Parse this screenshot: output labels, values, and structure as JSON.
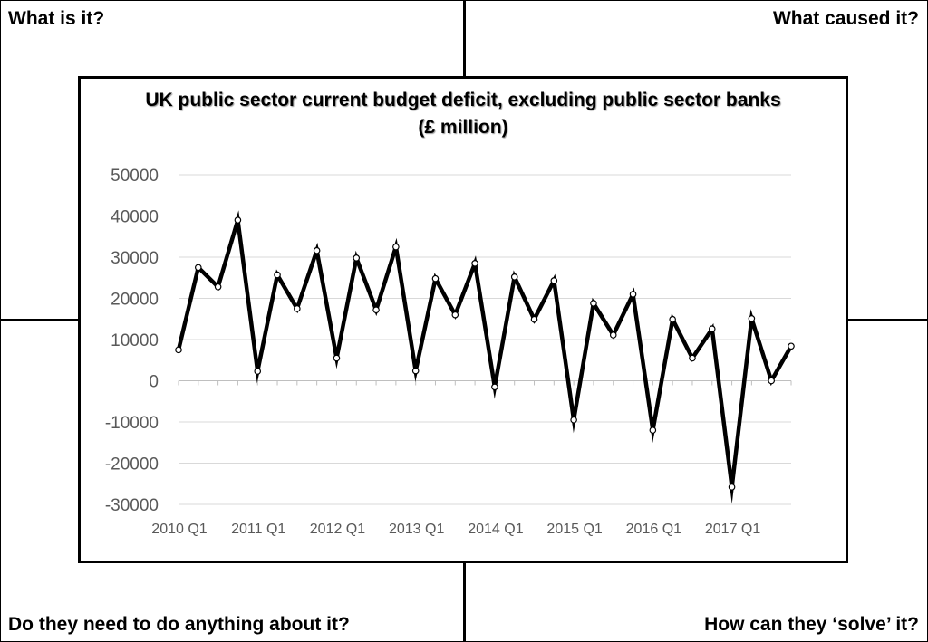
{
  "quadrants": {
    "top_left": "What is it?",
    "top_right": "What caused it?",
    "bottom_left": "Do they need to do anything about it?",
    "bottom_right": "How can they ‘solve’ it?"
  },
  "chart_data": {
    "type": "line",
    "title_line1": "UK public sector current budget deficit, excluding public sector banks",
    "title_line2": "(£ million)",
    "xlabel": "",
    "ylabel": "",
    "ylim": [
      -30000,
      50000
    ],
    "yticks": [
      50000,
      40000,
      30000,
      20000,
      10000,
      0,
      -10000,
      -20000,
      -30000
    ],
    "x": [
      "2010 Q1",
      "2010 Q2",
      "2010 Q3",
      "2010 Q4",
      "2011 Q1",
      "2011 Q2",
      "2011 Q3",
      "2011 Q4",
      "2012 Q1",
      "2012 Q2",
      "2012 Q3",
      "2012 Q4",
      "2013 Q1",
      "2013 Q2",
      "2013 Q3",
      "2013 Q4",
      "2014 Q1",
      "2014 Q2",
      "2014 Q3",
      "2014 Q4",
      "2015 Q1",
      "2015 Q2",
      "2015 Q3",
      "2015 Q4",
      "2016 Q1",
      "2016 Q2",
      "2016 Q3",
      "2016 Q4",
      "2017 Q1",
      "2017 Q2",
      "2017 Q3",
      "2017 Q4"
    ],
    "xtick_labels": [
      "2010 Q1",
      "2011 Q1",
      "2012 Q1",
      "2013 Q1",
      "2014 Q1",
      "2015 Q1",
      "2016 Q1",
      "2017 Q1"
    ],
    "series": [
      {
        "name": "",
        "values": [
          7500,
          27500,
          22800,
          39000,
          2300,
          25700,
          17500,
          31600,
          5500,
          29800,
          17200,
          32500,
          2400,
          24800,
          16000,
          28500,
          -1500,
          25200,
          14900,
          24300,
          -9500,
          18800,
          11100,
          21000,
          -12000,
          14900,
          5500,
          12600,
          -25800,
          15100,
          0,
          8400
        ],
        "color": "#000000"
      }
    ],
    "grid": true,
    "legend": "none"
  }
}
